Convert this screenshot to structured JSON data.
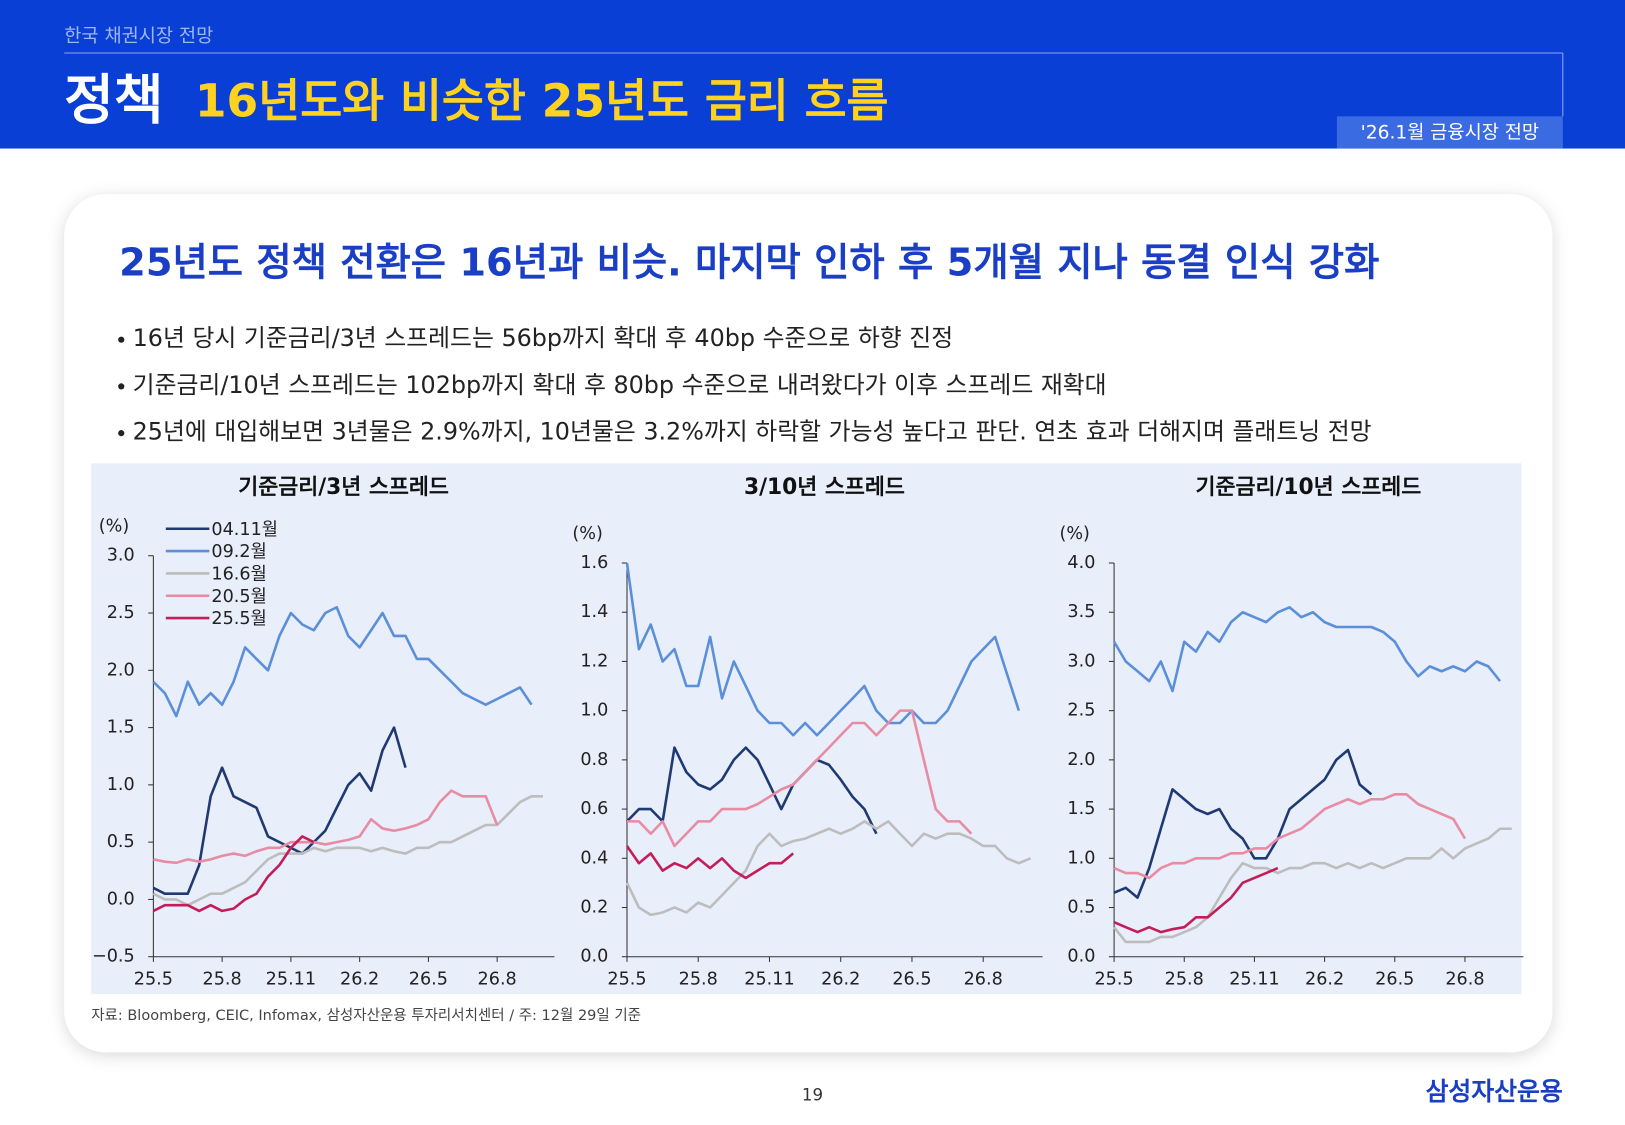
{
  "header": {
    "section": "한국 채권시장 전망",
    "title_main": "정책",
    "title_sub": "16년도와 비슷한 25년도 금리 흐름",
    "badge": "'26.1월 금융시장 전망"
  },
  "headline": "25년도 정책 전환은 16년과 비슷. 마지막 인하 후 5개월 지나 동결 인식 강화",
  "bullets": [
    "16년 당시 기준금리/3년 스프레드는 56bp까지 확대 후 40bp 수준으로 하향 진정",
    "기준금리/10년 스프레드는 102bp까지 확대 후 80bp 수준으로 내려왔다가 이후 스프레드 재확대",
    "25년에 대입해보면 3년물은 2.9%까지, 10년물은 3.2%까지 하락할 가능성 높다고 판단. 연초 효과 더해지며 플래트닝 전망"
  ],
  "chart_data": [
    {
      "type": "line",
      "title": "기준금리/3년 스프레드",
      "y_label": "(%)",
      "legend": "upper left",
      "x": [
        0,
        0.5,
        1,
        1.5,
        2,
        2.5,
        3,
        3.5,
        4,
        4.5,
        5,
        5.5,
        6,
        6.5,
        7,
        7.5,
        8,
        8.5,
        9,
        9.5,
        10,
        10.5,
        11,
        11.5,
        12,
        12.5,
        13,
        13.5,
        14,
        14.5,
        15,
        15.5,
        16,
        16.5,
        17
      ],
      "xlim": [
        0,
        17.5
      ],
      "xticks": [
        {
          "value": 0,
          "label": "25.5"
        },
        {
          "value": 3,
          "label": "25.8"
        },
        {
          "value": 6,
          "label": "25.11"
        },
        {
          "value": 9,
          "label": "26.2"
        },
        {
          "value": 12,
          "label": "26.5"
        },
        {
          "value": 15,
          "label": "26.8"
        }
      ],
      "ylim": [
        -0.5,
        3.0
      ],
      "yticks": [
        {
          "value": -0.5,
          "label": "−0.5"
        },
        {
          "value": 0,
          "label": "0.0"
        },
        0.5,
        {
          "value": 1,
          "label": "1.0"
        },
        1.5,
        {
          "value": 2,
          "label": "2.0"
        },
        2.5,
        {
          "value": 3,
          "label": "3.0"
        }
      ],
      "series": [
        {
          "name": "04.11월",
          "color": "#1f3a73",
          "values": [
            0.1,
            0.05,
            0.05,
            0.05,
            0.3,
            0.9,
            1.15,
            0.9,
            0.85,
            0.8,
            0.55,
            0.5,
            0.45,
            0.4,
            0.5,
            0.6,
            0.8,
            1.0,
            1.1,
            0.95,
            1.3,
            1.5,
            1.15,
            null,
            null,
            null,
            null,
            null,
            null,
            null,
            null,
            null,
            null,
            null,
            null
          ]
        },
        {
          "name": "09.2월",
          "color": "#5b8fd9",
          "values": [
            1.9,
            1.8,
            1.6,
            1.9,
            1.7,
            1.8,
            1.7,
            1.9,
            2.2,
            2.1,
            2.0,
            2.3,
            2.5,
            2.4,
            2.35,
            2.5,
            2.55,
            2.3,
            2.2,
            2.35,
            2.5,
            2.3,
            2.3,
            2.1,
            2.1,
            2.0,
            1.9,
            1.8,
            1.75,
            1.7,
            1.75,
            1.8,
            1.85,
            1.7,
            null
          ]
        },
        {
          "name": "16.6월",
          "color": "#bdbdbd",
          "values": [
            0.05,
            0,
            0,
            -0.05,
            0,
            0.05,
            0.05,
            0.1,
            0.15,
            0.25,
            0.35,
            0.4,
            0.4,
            0.4,
            0.45,
            0.42,
            0.45,
            0.45,
            0.45,
            0.42,
            0.45,
            0.42,
            0.4,
            0.45,
            0.45,
            0.5,
            0.5,
            0.55,
            0.6,
            0.65,
            0.65,
            0.75,
            0.85,
            0.9,
            0.9
          ]
        },
        {
          "name": "20.5월",
          "color": "#e88ca3",
          "values": [
            0.35,
            0.33,
            0.32,
            0.35,
            0.33,
            0.35,
            0.38,
            0.4,
            0.38,
            0.42,
            0.45,
            0.45,
            0.5,
            0.5,
            0.5,
            0.48,
            0.5,
            0.52,
            0.55,
            0.7,
            0.62,
            0.6,
            0.62,
            0.65,
            0.7,
            0.85,
            0.95,
            0.9,
            0.9,
            0.9,
            0.65,
            null,
            null,
            null,
            null
          ]
        },
        {
          "name": "25.5월",
          "color": "#c41e5a",
          "values": [
            -0.1,
            -0.05,
            -0.05,
            -0.05,
            -0.1,
            -0.05,
            -0.1,
            -0.08,
            0,
            0.05,
            0.2,
            0.3,
            0.45,
            0.55,
            0.5,
            null,
            null,
            null,
            null,
            null,
            null,
            null,
            null,
            null,
            null,
            null,
            null,
            null,
            null,
            null,
            null,
            null,
            null,
            null,
            null
          ]
        }
      ]
    },
    {
      "type": "line",
      "title": "3/10년 스프레드",
      "y_label": "(%)",
      "x": [
        0,
        0.5,
        1,
        1.5,
        2,
        2.5,
        3,
        3.5,
        4,
        4.5,
        5,
        5.5,
        6,
        6.5,
        7,
        7.5,
        8,
        8.5,
        9,
        9.5,
        10,
        10.5,
        11,
        11.5,
        12,
        12.5,
        13,
        13.5,
        14,
        14.5,
        15,
        15.5,
        16,
        16.5,
        17
      ],
      "xlim": [
        0,
        17.5
      ],
      "xticks": [
        {
          "value": 0,
          "label": "25.5"
        },
        {
          "value": 3,
          "label": "25.8"
        },
        {
          "value": 6,
          "label": "25.11"
        },
        {
          "value": 9,
          "label": "26.2"
        },
        {
          "value": 12,
          "label": "26.5"
        },
        {
          "value": 15,
          "label": "26.8"
        }
      ],
      "ylim": [
        0,
        1.6
      ],
      "yticks": [
        {
          "value": 0,
          "label": "0.0"
        },
        0.2,
        0.4,
        0.6,
        0.8,
        {
          "value": 1,
          "label": "1.0"
        },
        1.2,
        1.4,
        1.6
      ],
      "series": [
        {
          "color": "#1f3a73",
          "values": [
            0.55,
            0.6,
            0.6,
            0.55,
            0.85,
            0.75,
            0.7,
            0.68,
            0.72,
            0.8,
            0.85,
            0.8,
            0.7,
            0.6,
            0.7,
            0.75,
            0.8,
            0.78,
            0.72,
            0.65,
            0.6,
            0.5,
            null,
            null,
            null,
            null,
            null,
            null,
            null,
            null,
            null,
            null,
            null,
            null,
            null
          ]
        },
        {
          "color": "#5b8fd9",
          "values": [
            1.6,
            1.25,
            1.35,
            1.2,
            1.25,
            1.1,
            1.1,
            1.3,
            1.05,
            1.2,
            1.1,
            1.0,
            0.95,
            0.95,
            0.9,
            0.95,
            0.9,
            0.95,
            1.0,
            1.05,
            1.1,
            1.0,
            0.95,
            0.95,
            1.0,
            0.95,
            0.95,
            1.0,
            1.1,
            1.2,
            1.25,
            1.3,
            1.15,
            1.0,
            null
          ]
        },
        {
          "color": "#bdbdbd",
          "values": [
            0.3,
            0.2,
            0.17,
            0.18,
            0.2,
            0.18,
            0.22,
            0.2,
            0.25,
            0.3,
            0.35,
            0.45,
            0.5,
            0.45,
            0.47,
            0.48,
            0.5,
            0.52,
            0.5,
            0.52,
            0.55,
            0.52,
            0.55,
            0.5,
            0.45,
            0.5,
            0.48,
            0.5,
            0.5,
            0.48,
            0.45,
            0.45,
            0.4,
            0.38,
            0.4
          ]
        },
        {
          "color": "#e88ca3",
          "values": [
            0.55,
            0.55,
            0.5,
            0.55,
            0.45,
            0.5,
            0.55,
            0.55,
            0.6,
            0.6,
            0.6,
            0.62,
            0.65,
            0.68,
            0.7,
            0.75,
            0.8,
            0.85,
            0.9,
            0.95,
            0.95,
            0.9,
            0.95,
            1.0,
            1.0,
            0.8,
            0.6,
            0.55,
            0.55,
            0.5,
            null,
            null,
            null,
            null,
            null
          ]
        },
        {
          "color": "#c41e5a",
          "values": [
            0.45,
            0.38,
            0.42,
            0.35,
            0.38,
            0.36,
            0.4,
            0.36,
            0.4,
            0.35,
            0.32,
            0.35,
            0.38,
            0.38,
            0.42,
            null,
            null,
            null,
            null,
            null,
            null,
            null,
            null,
            null,
            null,
            null,
            null,
            null,
            null,
            null,
            null,
            null,
            null,
            null,
            null
          ]
        }
      ]
    },
    {
      "type": "line",
      "title": "기준금리/10년 스프레드",
      "y_label": "(%)",
      "x": [
        0,
        0.5,
        1,
        1.5,
        2,
        2.5,
        3,
        3.5,
        4,
        4.5,
        5,
        5.5,
        6,
        6.5,
        7,
        7.5,
        8,
        8.5,
        9,
        9.5,
        10,
        10.5,
        11,
        11.5,
        12,
        12.5,
        13,
        13.5,
        14,
        14.5,
        15,
        15.5,
        16,
        16.5,
        17
      ],
      "xlim": [
        0,
        17.5
      ],
      "xticks": [
        {
          "value": 0,
          "label": "25.5"
        },
        {
          "value": 3,
          "label": "25.8"
        },
        {
          "value": 6,
          "label": "25.11"
        },
        {
          "value": 9,
          "label": "26.2"
        },
        {
          "value": 12,
          "label": "26.5"
        },
        {
          "value": 15,
          "label": "26.8"
        }
      ],
      "ylim": [
        0,
        4.0
      ],
      "yticks": [
        {
          "value": 0,
          "label": "0.0"
        },
        0.5,
        {
          "value": 1,
          "label": "1.0"
        },
        1.5,
        {
          "value": 2,
          "label": "2.0"
        },
        2.5,
        {
          "value": 3,
          "label": "3.0"
        },
        3.5,
        {
          "value": 4,
          "label": "4.0"
        }
      ],
      "series": [
        {
          "color": "#1f3a73",
          "values": [
            0.65,
            0.7,
            0.6,
            0.9,
            1.3,
            1.7,
            1.6,
            1.5,
            1.45,
            1.5,
            1.3,
            1.2,
            1.0,
            1.0,
            1.2,
            1.5,
            1.6,
            1.7,
            1.8,
            2.0,
            2.1,
            1.75,
            1.65,
            null,
            null,
            null,
            null,
            null,
            null,
            null,
            null,
            null,
            null,
            null,
            null
          ]
        },
        {
          "color": "#5b8fd9",
          "values": [
            3.2,
            3.0,
            2.9,
            2.8,
            3.0,
            2.7,
            3.2,
            3.1,
            3.3,
            3.2,
            3.4,
            3.5,
            3.45,
            3.4,
            3.5,
            3.55,
            3.45,
            3.5,
            3.4,
            3.35,
            3.35,
            3.35,
            3.35,
            3.3,
            3.2,
            3.0,
            2.85,
            2.95,
            2.9,
            2.95,
            2.9,
            3.0,
            2.95,
            2.8,
            null
          ]
        },
        {
          "color": "#bdbdbd",
          "values": [
            0.3,
            0.15,
            0.15,
            0.15,
            0.2,
            0.2,
            0.25,
            0.3,
            0.4,
            0.6,
            0.8,
            0.95,
            0.9,
            0.9,
            0.85,
            0.9,
            0.9,
            0.95,
            0.95,
            0.9,
            0.95,
            0.9,
            0.95,
            0.9,
            0.95,
            1.0,
            1.0,
            1.0,
            1.1,
            1.0,
            1.1,
            1.15,
            1.2,
            1.3,
            1.3
          ]
        },
        {
          "color": "#e88ca3",
          "values": [
            0.9,
            0.85,
            0.85,
            0.8,
            0.9,
            0.95,
            0.95,
            1.0,
            1.0,
            1.0,
            1.05,
            1.05,
            1.1,
            1.1,
            1.2,
            1.25,
            1.3,
            1.4,
            1.5,
            1.55,
            1.6,
            1.55,
            1.6,
            1.6,
            1.65,
            1.65,
            1.55,
            1.5,
            1.45,
            1.4,
            1.2,
            null,
            null,
            null,
            null
          ]
        },
        {
          "color": "#c41e5a",
          "values": [
            0.35,
            0.3,
            0.25,
            0.3,
            0.25,
            0.28,
            0.3,
            0.4,
            0.4,
            0.5,
            0.6,
            0.75,
            0.8,
            0.85,
            0.9,
            null,
            null,
            null,
            null,
            null,
            null,
            null,
            null,
            null,
            null,
            null,
            null,
            null,
            null,
            null,
            null,
            null,
            null,
            null,
            null
          ]
        }
      ]
    }
  ],
  "source": "자료: Bloomberg, CEIC, Infomax, 삼성자산운용 투자리서치센터 / 주: 12월 29일 기준",
  "page_number": "19",
  "logo": "삼성자산운용"
}
